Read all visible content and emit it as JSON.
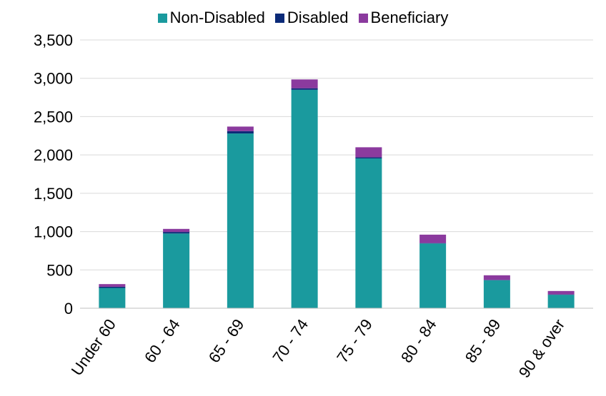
{
  "chart_data": {
    "type": "bar",
    "stacked": true,
    "title": "",
    "xlabel": "",
    "ylabel": "",
    "categories": [
      "Under 60",
      "60 - 64",
      "65 - 69",
      "70 - 74",
      "75 - 79",
      "80 - 84",
      "85 - 89",
      "90 & over"
    ],
    "series": [
      {
        "name": "Non-Disabled",
        "color": "#1a9a9e",
        "values": [
          265,
          975,
          2280,
          2850,
          1955,
          845,
          365,
          175
        ]
      },
      {
        "name": "Disabled",
        "color": "#0b2a78",
        "values": [
          15,
          20,
          30,
          20,
          15,
          5,
          5,
          5
        ]
      },
      {
        "name": "Beneficiary",
        "color": "#8b3a9e",
        "values": [
          35,
          40,
          60,
          115,
          130,
          110,
          60,
          45
        ]
      }
    ],
    "ylim": [
      0,
      3500
    ],
    "yticks": [
      0,
      500,
      1000,
      1500,
      2000,
      2500,
      3000,
      3500
    ],
    "ytick_labels": [
      "0",
      "500",
      "1,000",
      "1,500",
      "2,000",
      "2,500",
      "3,000",
      "3,500"
    ],
    "grid": true,
    "legend_position": "top"
  }
}
